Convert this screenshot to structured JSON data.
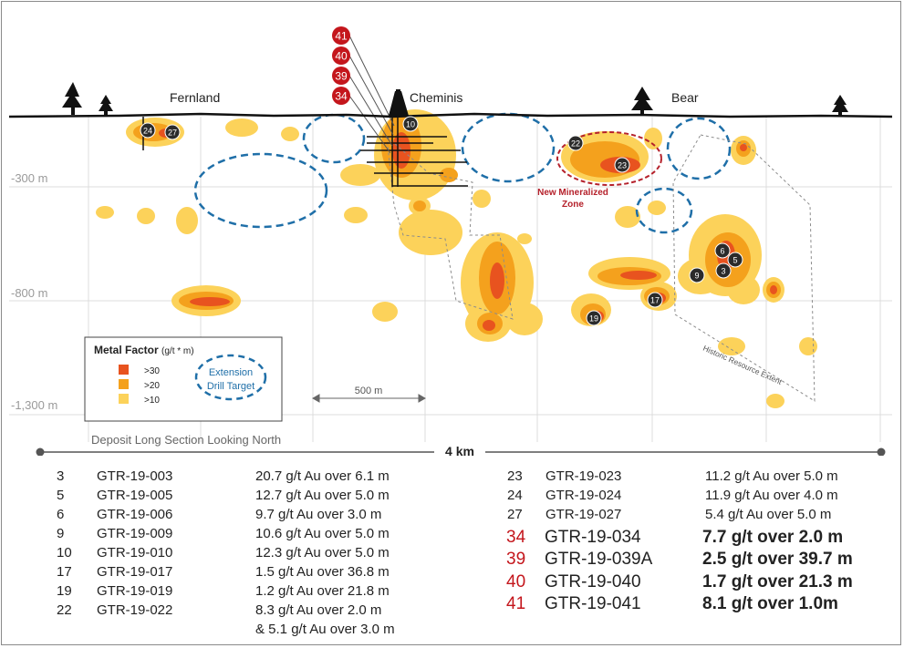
{
  "map": {
    "depth_labels": [
      "-300 m",
      "-800 m",
      "-1,300 m"
    ],
    "sites": [
      "Fernland",
      "Cheminis",
      "Bear"
    ],
    "scale_bar_label": "500 m",
    "length_label": "4 km",
    "caption": "Deposit Long Section Looking North",
    "new_zone_label": [
      "New Mineralized",
      "Zone"
    ],
    "historic_label": "Historic Resource Extent",
    "top_hole_markers": [
      "41",
      "40",
      "39",
      "34"
    ],
    "hole_markers": [
      "24",
      "27",
      "10",
      "22",
      "23",
      "6",
      "5",
      "3",
      "9",
      "17",
      "19"
    ],
    "legend": {
      "title": "Metal Factor",
      "title_unit": "(g/t * m)",
      "items": [
        {
          "label": ">30",
          "color": "#e8531f"
        },
        {
          "label": ">20",
          "color": "#f4a11d"
        },
        {
          "label": ">10",
          "color": "#fcd25a"
        }
      ],
      "target_label": [
        "Extension",
        "Drill Target"
      ]
    },
    "colors": {
      "high": "#e8531f",
      "mid": "#f4a11d",
      "low": "#fcd25a",
      "target": "#1f6fa8",
      "new_zone": "#b5212b",
      "marker": "#2b2b2b",
      "marker_red": "#c4161c"
    }
  },
  "results": {
    "left": [
      {
        "id": "3",
        "hole": "GTR-19-003",
        "result": "20.7 g/t Au over 6.1 m"
      },
      {
        "id": "5",
        "hole": "GTR-19-005",
        "result": "12.7 g/t Au over 5.0 m"
      },
      {
        "id": "6",
        "hole": "GTR-19-006",
        "result": "9.7 g/t Au over 3.0 m"
      },
      {
        "id": "9",
        "hole": "GTR-19-009",
        "result": "10.6 g/t Au over 5.0 m"
      },
      {
        "id": "10",
        "hole": "GTR-19-010",
        "result": "12.3 g/t Au over 5.0 m"
      },
      {
        "id": "17",
        "hole": "GTR-19-017",
        "result": "1.5 g/t Au over 36.8 m"
      },
      {
        "id": "19",
        "hole": "GTR-19-019",
        "result": "1.2 g/t Au over 21.8 m"
      },
      {
        "id": "22",
        "hole": "GTR-19-022",
        "result": "8.3 g/t Au over 2.0 m"
      }
    ],
    "left_continuation": "& 5.1 g/t Au over 3.0 m",
    "right": [
      {
        "id": "23",
        "hole": "GTR-19-023",
        "result": "11.2 g/t Au over 5.0 m"
      },
      {
        "id": "24",
        "hole": "GTR-19-024",
        "result": "11.9 g/t Au over 4.0 m"
      },
      {
        "id": "27",
        "hole": "GTR-19-027",
        "result": "5.4 g/t Au over 5.0 m"
      }
    ],
    "right_highlight": [
      {
        "id": "34",
        "hole": "GTR-19-034",
        "result": "7.7 g/t over 2.0 m"
      },
      {
        "id": "39",
        "hole": "GTR-19-039A",
        "result": "2.5 g/t over 39.7 m"
      },
      {
        "id": "40",
        "hole": "GTR-19-040",
        "result": "1.7 g/t over 21.3 m"
      },
      {
        "id": "41",
        "hole": "GTR-19-041",
        "result": "8.1 g/t over 1.0m"
      }
    ]
  }
}
